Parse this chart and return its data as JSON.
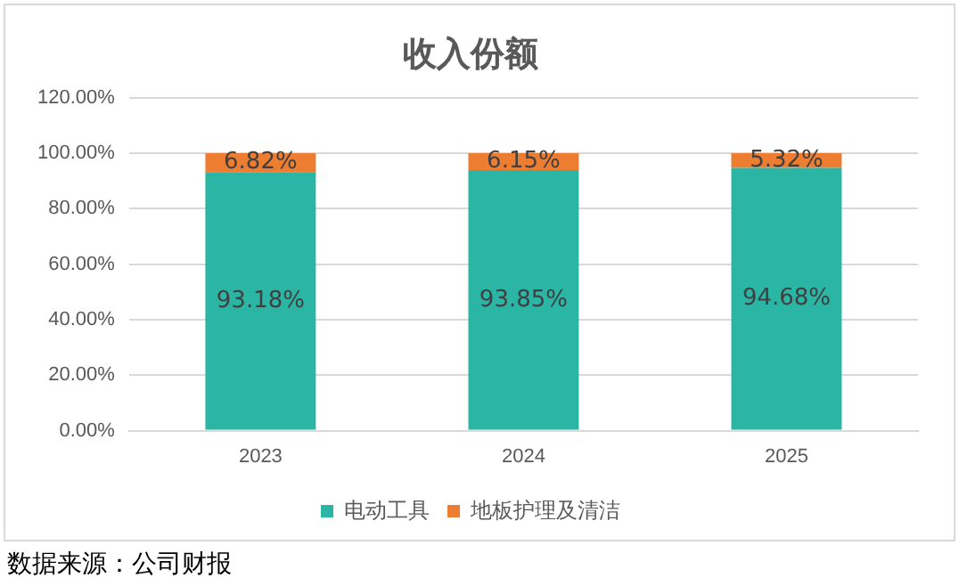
{
  "chart_data": {
    "type": "bar",
    "title": "收入份额",
    "categories": [
      "2023",
      "2024",
      "2025"
    ],
    "series": [
      {
        "name": "电动工具",
        "color": "#2bb5a5",
        "values": [
          93.18,
          93.85,
          94.68
        ],
        "value_labels": [
          "93.18%",
          "93.85%",
          "94.68%"
        ]
      },
      {
        "name": "地板护理及清洁",
        "color": "#ed7d31",
        "values": [
          6.82,
          6.15,
          5.32
        ],
        "value_labels": [
          "6.82%",
          "6.15%",
          "5.32%"
        ]
      }
    ],
    "stacked": true,
    "ylim": [
      0,
      120
    ],
    "yticks": [
      {
        "value": 0,
        "label": "0.00%"
      },
      {
        "value": 20,
        "label": "20.00%"
      },
      {
        "value": 40,
        "label": "40.00%"
      },
      {
        "value": 60,
        "label": "60.00%"
      },
      {
        "value": 80,
        "label": "80.00%"
      },
      {
        "value": 100,
        "label": "100.00%"
      },
      {
        "value": 120,
        "label": "120.00%"
      }
    ],
    "grid": "y",
    "legend": "bottom",
    "annotations": [
      "数据来源：公司财报"
    ]
  }
}
